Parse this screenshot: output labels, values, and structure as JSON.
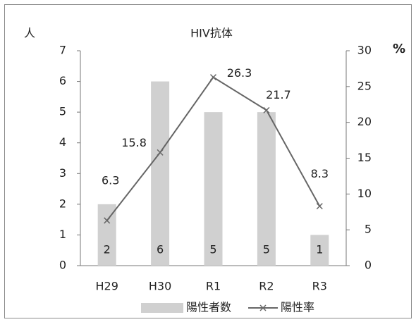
{
  "chart_data": {
    "type": "bar",
    "title": "HIV抗体",
    "ylabel": "人",
    "y2label": "%",
    "categories": [
      "H29",
      "H30",
      "R1",
      "R2",
      "R3"
    ],
    "series": [
      {
        "name": "陽性者数",
        "type": "bar",
        "color": "#d0d0d0",
        "values": [
          2,
          6,
          5,
          5,
          1
        ]
      },
      {
        "name": "陽性率",
        "type": "line",
        "axis": "y2",
        "color": "#666666",
        "values": [
          6.3,
          15.8,
          26.3,
          21.7,
          8.3
        ]
      }
    ],
    "ylim": [
      0,
      7
    ],
    "yticks": [
      0,
      1,
      2,
      3,
      4,
      5,
      6,
      7
    ],
    "y2lim": [
      0,
      30
    ],
    "y2ticks": [
      0,
      5,
      10,
      15,
      20,
      25,
      30
    ],
    "grid": false,
    "legend": "bottom"
  }
}
